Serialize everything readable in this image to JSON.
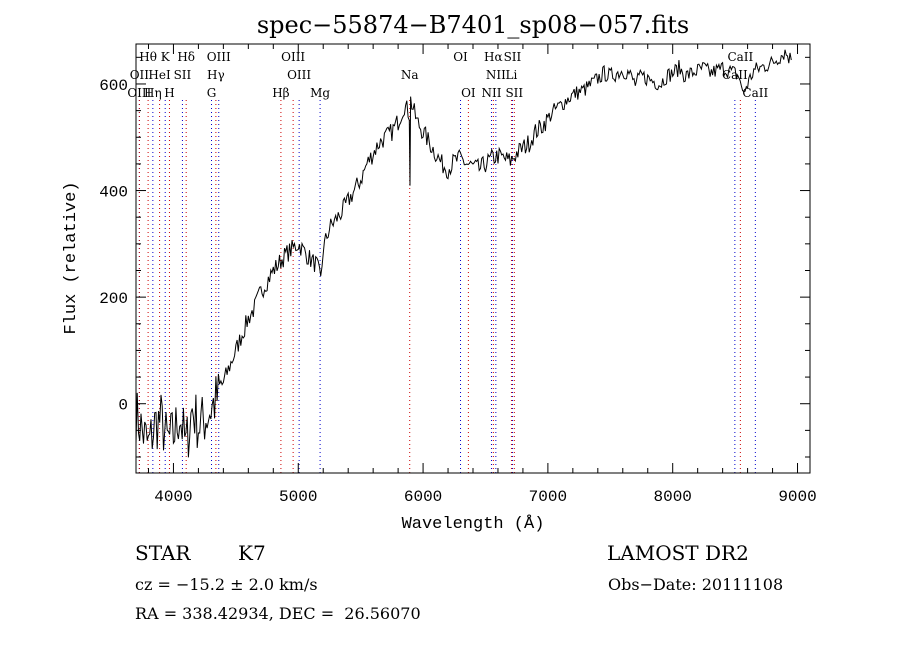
{
  "chart_data": {
    "type": "line",
    "title": "spec−55874−B7401_sp08−057.fits",
    "xlabel": "Wavelength (Å)",
    "ylabel": "Flux (relative)",
    "xlim": [
      3700,
      9100
    ],
    "ylim": [
      -130,
      675
    ],
    "x_ticks": [
      4000,
      5000,
      6000,
      7000,
      8000,
      9000
    ],
    "x_tick_labels": [
      "4000",
      "5000",
      "6000",
      "7000",
      "8000",
      "9000"
    ],
    "y_ticks": [
      0,
      200,
      400,
      600
    ],
    "y_tick_labels": [
      "0",
      "200",
      "400",
      "600"
    ],
    "grid": false,
    "series": [
      {
        "color": "#000000",
        "x": [
          3700,
          3750,
          3800,
          3850,
          3900,
          3950,
          4000,
          4050,
          4100,
          4150,
          4200,
          4250,
          4300,
          4350,
          4400,
          4450,
          4500,
          4550,
          4600,
          4650,
          4700,
          4750,
          4800,
          4850,
          4900,
          4950,
          5000,
          5050,
          5100,
          5150,
          5180,
          5200,
          5250,
          5300,
          5350,
          5400,
          5450,
          5500,
          5550,
          5600,
          5650,
          5700,
          5750,
          5800,
          5850,
          5890,
          5895,
          5900,
          5950,
          6000,
          6050,
          6100,
          6150,
          6200,
          6250,
          6300,
          6350,
          6400,
          6450,
          6500,
          6550,
          6600,
          6650,
          6700,
          6750,
          6800,
          6850,
          6900,
          6950,
          7000,
          7050,
          7100,
          7150,
          7200,
          7250,
          7300,
          7350,
          7400,
          7450,
          7500,
          7550,
          7600,
          7650,
          7700,
          7750,
          7800,
          7850,
          7900,
          7950,
          8000,
          8050,
          8100,
          8150,
          8200,
          8250,
          8300,
          8350,
          8400,
          8450,
          8500,
          8540,
          8560,
          8600,
          8650,
          8700,
          8750,
          8800,
          8850,
          8900,
          8950
        ],
        "y": [
          -20,
          -50,
          -80,
          -40,
          -30,
          -70,
          -60,
          -20,
          -80,
          -10,
          -40,
          -30,
          -10,
          10,
          40,
          70,
          100,
          130,
          160,
          180,
          210,
          230,
          250,
          265,
          280,
          290,
          300,
          285,
          270,
          260,
          230,
          290,
          330,
          345,
          360,
          380,
          400,
          420,
          450,
          470,
          490,
          500,
          510,
          530,
          560,
          545,
          420,
          570,
          530,
          510,
          490,
          470,
          450,
          440,
          455,
          460,
          450,
          445,
          440,
          450,
          460,
          465,
          460,
          455,
          470,
          480,
          490,
          510,
          520,
          535,
          550,
          560,
          570,
          580,
          585,
          590,
          600,
          610,
          620,
          615,
          620,
          625,
          620,
          600,
          615,
          610,
          605,
          600,
          615,
          620,
          630,
          615,
          620,
          625,
          630,
          620,
          625,
          630,
          625,
          620,
          610,
          580,
          600,
          625,
          630,
          635,
          640,
          650,
          660,
          645
        ]
      }
    ],
    "line_markers": [
      {
        "label": "Hθ",
        "x": 3797,
        "row": 0,
        "color": "#000000"
      },
      {
        "label": "K",
        "x": 3934,
        "row": 0,
        "color": "#000000"
      },
      {
        "label": "Hδ",
        "x": 4102,
        "row": 0,
        "color": "#000000"
      },
      {
        "label": "OIII",
        "x": 4363,
        "row": 0,
        "color": "#000000"
      },
      {
        "label": "OIII",
        "x": 4959,
        "row": 0,
        "color": "#000000"
      },
      {
        "label": "OI",
        "x": 6300,
        "row": 0,
        "color": "#000000"
      },
      {
        "label": "Hα",
        "x": 6563,
        "row": 0,
        "color": "#000000"
      },
      {
        "label": "SII",
        "x": 6716,
        "row": 0,
        "color": "#000000"
      },
      {
        "label": "CaII",
        "x": 8542,
        "row": 0,
        "color": "#000000"
      },
      {
        "label": "OII",
        "x": 3727,
        "row": 1,
        "color": "#000000"
      },
      {
        "label": "HeI",
        "x": 3889,
        "row": 1,
        "color": "#000000"
      },
      {
        "label": "SII",
        "x": 4072,
        "row": 1,
        "color": "#000000"
      },
      {
        "label": "Hγ",
        "x": 4340,
        "row": 1,
        "color": "#000000"
      },
      {
        "label": "OIII",
        "x": 5007,
        "row": 1,
        "color": "#000000"
      },
      {
        "label": "Na",
        "x": 5893,
        "row": 1,
        "color": "#000000"
      },
      {
        "label": "NII",
        "x": 6583,
        "row": 1,
        "color": "#000000"
      },
      {
        "label": "Li",
        "x": 6708,
        "row": 1,
        "color": "#000000"
      },
      {
        "label": "CaII",
        "x": 8498,
        "row": 1,
        "color": "#000000"
      },
      {
        "label": "OIII",
        "x": 3727,
        "row": 2,
        "color": "#000000"
      },
      {
        "label": "Hη",
        "x": 3835,
        "row": 2,
        "color": "#000000"
      },
      {
        "label": "H",
        "x": 3968,
        "row": 2,
        "color": "#000000"
      },
      {
        "label": "G",
        "x": 4305,
        "row": 2,
        "color": "#000000"
      },
      {
        "label": "Hβ",
        "x": 4861,
        "row": 2,
        "color": "#000000"
      },
      {
        "label": "Mg",
        "x": 5175,
        "row": 2,
        "color": "#000000"
      },
      {
        "label": "OI",
        "x": 6363,
        "row": 2,
        "color": "#000000"
      },
      {
        "label": "NII",
        "x": 6548,
        "row": 2,
        "color": "#000000"
      },
      {
        "label": "SII",
        "x": 6731,
        "row": 2,
        "color": "#000000"
      },
      {
        "label": "CaII",
        "x": 8662,
        "row": 2,
        "color": "#000000"
      }
    ],
    "marker_line_colors": {
      "absorption": "#cc0000",
      "emission": "#0000cc"
    }
  },
  "info": {
    "object_class": "STAR",
    "subclass": "K7",
    "survey": "LAMOST DR2",
    "velocity": "cz = −15.2 ± 2.0 km/s",
    "obs_date": "Obs−Date: 20111108",
    "coords": "RA = 338.42934, DEC =  26.56070"
  }
}
